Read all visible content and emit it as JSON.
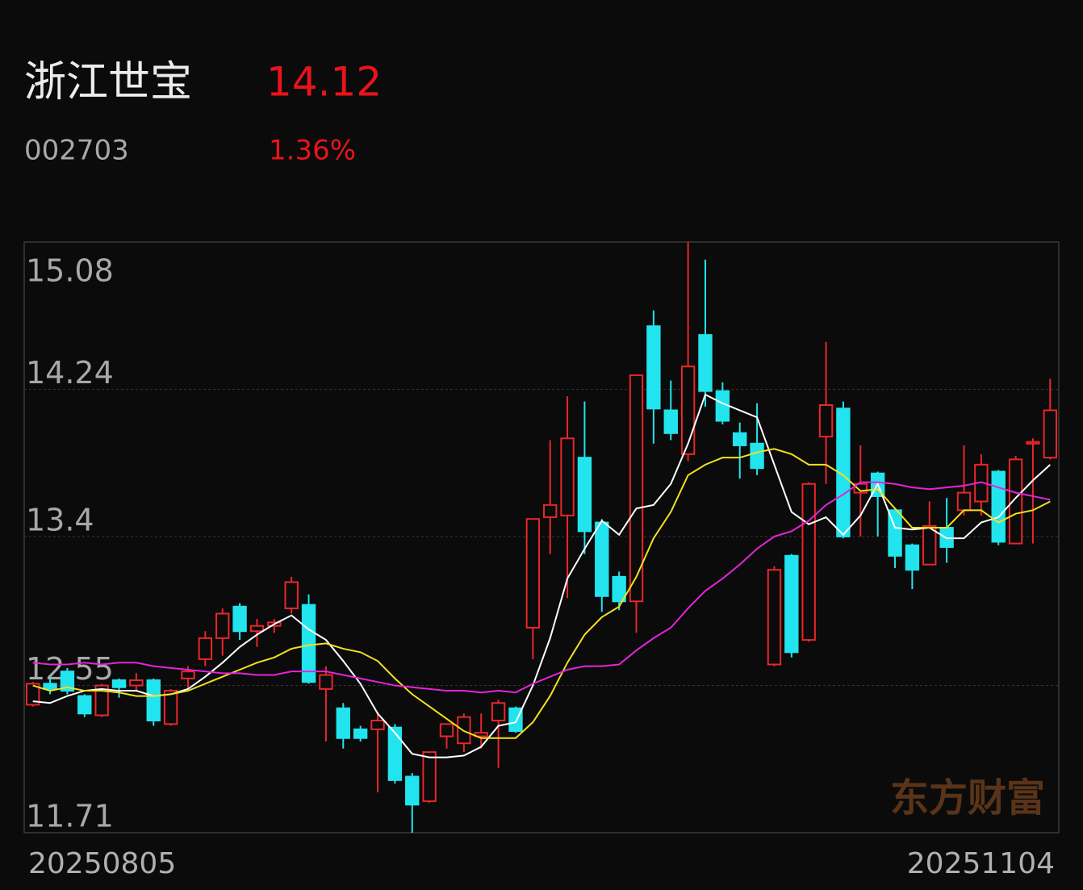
{
  "header": {
    "name": "浙江世宝",
    "price": "14.12",
    "code": "002703",
    "change": "1.36%"
  },
  "watermark": "东方财富",
  "chart_data": {
    "type": "candlestick",
    "start_date": "20250805",
    "end_date": "20251104",
    "ylim": [
      11.71,
      15.08
    ],
    "yticks": [
      11.71,
      12.55,
      13.4,
      14.24,
      15.08
    ],
    "grid": true,
    "up_color": "#e8262a",
    "down_color": "#22e4ee",
    "open": [
      12.44,
      12.56,
      12.63,
      12.49,
      12.38,
      12.58,
      12.55,
      12.58,
      12.33,
      12.59,
      12.7,
      12.82,
      13.0,
      12.86,
      12.89,
      12.99,
      13.01,
      12.53,
      12.42,
      12.3,
      12.3,
      12.31,
      12.03,
      11.89,
      12.26,
      12.22,
      12.26,
      12.35,
      12.42,
      12.88,
      13.51,
      13.52,
      13.85,
      13.48,
      13.17,
      13.03,
      14.6,
      14.12,
      13.87,
      14.55,
      14.23,
      13.99,
      13.93,
      12.67,
      13.29,
      12.81,
      13.97,
      14.13,
      13.65,
      13.76,
      13.55,
      13.35,
      13.24,
      13.45,
      13.55,
      13.6,
      13.77,
      13.36,
      13.93,
      13.85
    ],
    "high": [
      12.57,
      12.6,
      12.65,
      12.5,
      12.56,
      12.59,
      12.62,
      12.59,
      12.53,
      12.66,
      12.86,
      12.99,
      13.02,
      12.93,
      12.93,
      13.17,
      13.07,
      12.66,
      12.45,
      12.32,
      12.4,
      12.33,
      12.05,
      12.17,
      12.33,
      12.39,
      12.39,
      12.47,
      12.43,
      13.5,
      13.95,
      14.2,
      14.17,
      13.5,
      13.2,
      14.32,
      14.69,
      14.29,
      15.08,
      14.98,
      14.28,
      14.05,
      14.16,
      13.23,
      13.3,
      13.71,
      14.51,
      14.17,
      13.92,
      13.77,
      13.56,
      13.36,
      13.6,
      13.62,
      13.92,
      13.87,
      13.78,
      13.86,
      13.96,
      14.3
    ],
    "low": [
      12.43,
      12.5,
      12.5,
      12.37,
      12.37,
      12.48,
      12.52,
      12.32,
      12.32,
      12.53,
      12.66,
      12.72,
      12.81,
      12.77,
      12.85,
      12.96,
      12.56,
      12.23,
      12.19,
      12.23,
      11.94,
      11.99,
      11.71,
      11.88,
      12.19,
      12.17,
      12.19,
      12.08,
      12.28,
      12.7,
      13.3,
      13.05,
      13.3,
      12.97,
      12.98,
      12.85,
      13.93,
      13.95,
      13.83,
      14.14,
      14.04,
      13.73,
      13.75,
      12.66,
      12.71,
      12.8,
      13.7,
      13.39,
      13.4,
      13.4,
      13.22,
      13.1,
      13.24,
      13.25,
      13.52,
      13.52,
      13.35,
      13.36,
      13.36,
      13.84
    ],
    "close": [
      12.56,
      12.53,
      12.52,
      12.39,
      12.55,
      12.54,
      12.58,
      12.35,
      12.52,
      12.63,
      12.82,
      12.96,
      12.86,
      12.89,
      12.91,
      13.14,
      12.57,
      12.61,
      12.25,
      12.25,
      12.35,
      12.01,
      11.87,
      12.17,
      12.33,
      12.37,
      12.28,
      12.45,
      12.29,
      13.5,
      13.58,
      13.96,
      13.43,
      13.06,
      13.03,
      14.32,
      14.13,
      13.99,
      14.37,
      14.23,
      14.06,
      13.92,
      13.79,
      13.21,
      12.74,
      13.7,
      14.15,
      13.4,
      13.7,
      13.63,
      13.29,
      13.21,
      13.46,
      13.34,
      13.65,
      13.81,
      13.37,
      13.84,
      13.94,
      14.12
    ],
    "ma_lines": [
      {
        "color": "#ffffff",
        "values": [
          12.46,
          12.45,
          12.49,
          12.52,
          12.53,
          12.52,
          12.52,
          12.49,
          12.5,
          12.53,
          12.6,
          12.68,
          12.77,
          12.84,
          12.9,
          12.95,
          12.87,
          12.81,
          12.69,
          12.56,
          12.39,
          12.28,
          12.16,
          12.14,
          12.14,
          12.15,
          12.2,
          12.32,
          12.34,
          12.55,
          12.82,
          13.16,
          13.33,
          13.49,
          13.41,
          13.56,
          13.58,
          13.7,
          13.93,
          14.21,
          14.16,
          14.12,
          14.08,
          13.81,
          13.54,
          13.47,
          13.51,
          13.41,
          13.52,
          13.7,
          13.45,
          13.44,
          13.45,
          13.39,
          13.39,
          13.48,
          13.51,
          13.62,
          13.72,
          13.81
        ]
      },
      {
        "color": "#f2e11e",
        "values": [
          12.55,
          12.52,
          12.54,
          12.52,
          12.52,
          12.51,
          12.49,
          12.49,
          12.5,
          12.52,
          12.56,
          12.6,
          12.64,
          12.68,
          12.71,
          12.76,
          12.78,
          12.79,
          12.76,
          12.74,
          12.69,
          12.59,
          12.5,
          12.43,
          12.36,
          12.29,
          12.25,
          12.25,
          12.25,
          12.34,
          12.49,
          12.68,
          12.84,
          12.94,
          13.0,
          13.17,
          13.39,
          13.54,
          13.75,
          13.81,
          13.85,
          13.85,
          13.88,
          13.9,
          13.87,
          13.81,
          13.81,
          13.75,
          13.66,
          13.67,
          13.56,
          13.45,
          13.45,
          13.45,
          13.55,
          13.55,
          13.48,
          13.53,
          13.55,
          13.6
        ]
      },
      {
        "color": "#e524d8",
        "values": [
          12.68,
          12.67,
          12.67,
          12.68,
          12.67,
          12.68,
          12.68,
          12.66,
          12.65,
          12.64,
          12.63,
          12.62,
          12.62,
          12.61,
          12.61,
          12.63,
          12.63,
          12.63,
          12.61,
          12.59,
          12.57,
          12.55,
          12.54,
          12.53,
          12.52,
          12.52,
          12.51,
          12.52,
          12.51,
          12.56,
          12.6,
          12.64,
          12.66,
          12.66,
          12.67,
          12.75,
          12.82,
          12.88,
          12.99,
          13.09,
          13.16,
          13.24,
          13.33,
          13.4,
          13.43,
          13.49,
          13.58,
          13.64,
          13.71,
          13.71,
          13.7,
          13.68,
          13.67,
          13.68,
          13.69,
          13.71,
          13.68,
          13.65,
          13.63,
          13.61
        ]
      }
    ]
  }
}
